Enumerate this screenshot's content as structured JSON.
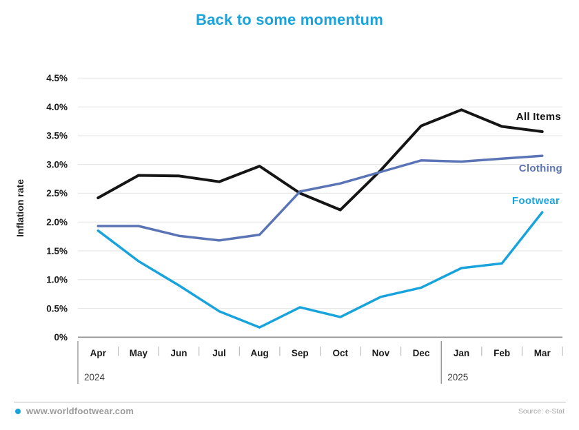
{
  "title": "Back to some momentum",
  "chart_data": {
    "type": "line",
    "title": "Back to some momentum",
    "xlabel": "",
    "ylabel": "Inflation rate",
    "x_categories": [
      "Apr",
      "May",
      "Jun",
      "Jul",
      "Aug",
      "Sep",
      "Oct",
      "Nov",
      "Dec",
      "Jan",
      "Feb",
      "Mar"
    ],
    "year_groups": [
      {
        "label": "2024",
        "start_index": 0
      },
      {
        "label": "2025",
        "start_index": 9
      }
    ],
    "y_ticks": [
      {
        "label": "4.5%",
        "value": 4.5
      },
      {
        "label": "4.0%",
        "value": 4.0
      },
      {
        "label": "3.5%",
        "value": 3.5
      },
      {
        "label": "3.0%",
        "value": 3.0
      },
      {
        "label": "2.5%",
        "value": 2.5
      },
      {
        "label": "2.0%",
        "value": 2.0
      },
      {
        "label": "1.5%",
        "value": 1.5
      },
      {
        "label": "1.0%",
        "value": 1.0
      },
      {
        "label": "0.5%",
        "value": 0.5
      },
      {
        "label": "0%",
        "value": 0
      }
    ],
    "ylim": [
      0,
      4.5
    ],
    "grid": true,
    "legend_position": "end-of-line-labels-right",
    "series": [
      {
        "name": "All Items",
        "color": "#151515",
        "values": [
          2.42,
          2.81,
          2.8,
          2.7,
          2.97,
          2.5,
          2.21,
          2.9,
          3.67,
          3.95,
          3.66,
          3.57
        ]
      },
      {
        "name": "Clothing",
        "color": "#5b74b6",
        "values": [
          1.93,
          1.93,
          1.76,
          1.68,
          1.78,
          2.53,
          2.67,
          2.87,
          3.07,
          3.05,
          3.1,
          3.15
        ]
      },
      {
        "name": "Footwear",
        "color": "#19a3dc",
        "values": [
          1.85,
          1.32,
          0.9,
          0.45,
          0.17,
          0.52,
          0.35,
          0.7,
          0.86,
          1.2,
          1.28,
          2.17
        ]
      }
    ]
  },
  "footer": {
    "website": "www.worldfootwear.com",
    "source": "Source: e-Stat",
    "dot_color": "#19a3dc"
  },
  "colors": {
    "accent": "#19a3dc",
    "title_text": "#19a3dc",
    "grid": "#e8e8e8",
    "axis": "#8e8e8e",
    "tick_short": "#b0b0b0",
    "tick_tall": "#8e8e8e",
    "month_text": "#1a1a1a",
    "year_text": "#3c3c3c",
    "footer_text": "#9b9b9b",
    "source_text": "#a6a6a6"
  }
}
